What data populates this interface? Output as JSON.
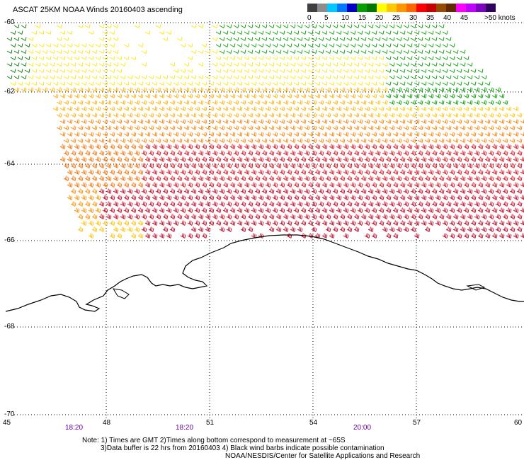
{
  "title": "ASCAT 25KM NOAA Winds 20160403 ascending",
  "color_scale": {
    "colors": [
      "#404040",
      "#8c8c8c",
      "#00c8ff",
      "#0078ff",
      "#0000c8",
      "#00a000",
      "#007800",
      "#ffff00",
      "#ffc800",
      "#ff9600",
      "#ff6400",
      "#ff0000",
      "#c80000",
      "#964b00",
      "#642800",
      "#ff00ff",
      "#c000ff",
      "#8000c0",
      "#300060"
    ],
    "ticks": [
      "0",
      "5",
      "10",
      "15",
      "20",
      "25",
      "30",
      "35",
      "40",
      "45",
      ">50 knots"
    ]
  },
  "axes": {
    "y_labels": [
      "-60",
      "-62",
      "-64",
      "-66",
      "-68",
      "-70"
    ],
    "x_labels": [
      "45",
      "48",
      "51",
      "54",
      "57",
      "60"
    ],
    "time_labels": [
      "18:20",
      "18:20",
      "20:00"
    ]
  },
  "notes": [
    "Note: 1) Times are GMT 2)Times along bottom correspond to measurement at ~65S",
    "3)Data buffer is 22 hrs from 20160403 4) Black wind barbs indicate possible contamination",
    "NOAA/NESDIS/Center for Satellite Applications and Research"
  ]
}
